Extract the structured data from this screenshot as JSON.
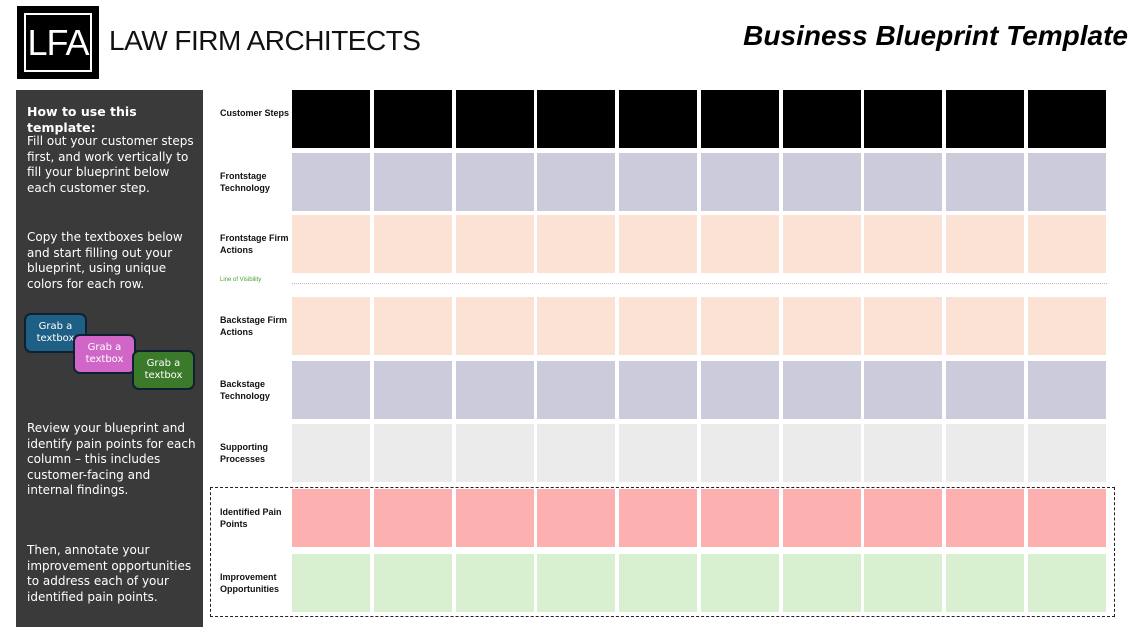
{
  "header": {
    "logo_text": "LFA",
    "brand": "LAW FIRM ARCHITECTS",
    "title": "Business Blueprint Template"
  },
  "sidebar": {
    "heading": "How to use this template:",
    "step1": "Fill out your customer steps first, and work vertically to fill your blueprint below each customer step.",
    "step2": "Copy the textboxes below and start filling out your blueprint, using unique colors for each row.",
    "textboxes": [
      {
        "label": "Grab a textbox",
        "color": "#1e5f86"
      },
      {
        "label": "Grab a textbox",
        "color": "#d067c8"
      },
      {
        "label": "Grab a textbox",
        "color": "#3a7a2a"
      }
    ],
    "step3": "Review your blueprint and identify pain points for each column – this includes customer-facing and internal findings.",
    "step4": "Then, annotate your improvement opportunities to address each of your identified pain points."
  },
  "blueprint": {
    "columns": 10,
    "line_of_visibility": "Line of Visibility",
    "rows": [
      {
        "label": "Customer Steps",
        "color": "#000000"
      },
      {
        "label": "Frontstage Technology",
        "color": "#cbcbdb"
      },
      {
        "label": "Frontstage Firm Actions",
        "color": "#fbe2d4"
      },
      {
        "label": "Backstage Firm Actions",
        "color": "#fbe2d4"
      },
      {
        "label": "Backstage Technology",
        "color": "#cbcbdb"
      },
      {
        "label": "Supporting Processes",
        "color": "#ebebeb"
      },
      {
        "label": "Identified Pain Points",
        "color": "#fdb0b0"
      },
      {
        "label": "Improvement Opportunities",
        "color": "#d9f0d0"
      }
    ]
  }
}
